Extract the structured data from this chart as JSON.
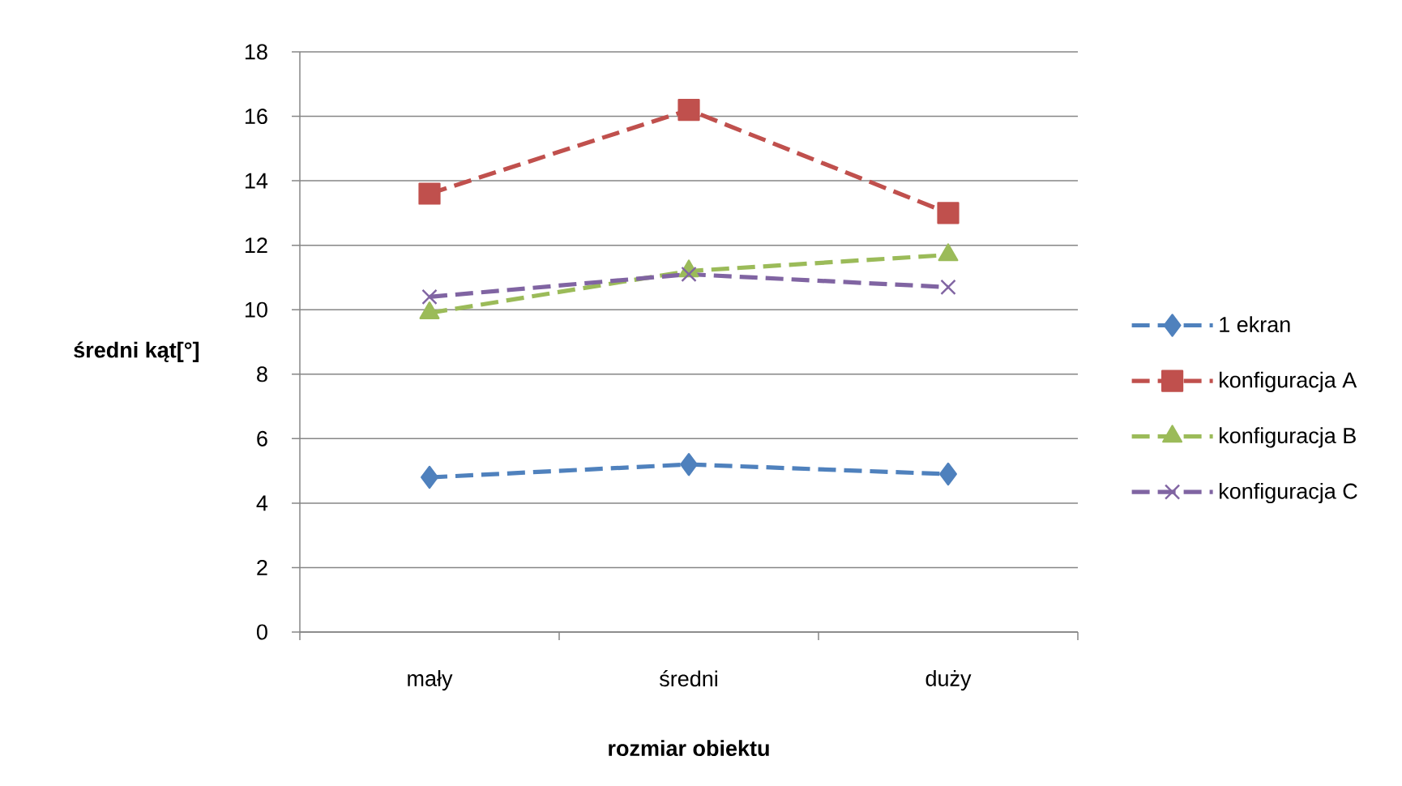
{
  "chart_data": {
    "type": "line",
    "xlabel": "rozmiar obiektu",
    "ylabel": "średni kąt[°]",
    "categories": [
      "mały",
      "średni",
      "duży"
    ],
    "series": [
      {
        "name": "1 ekran",
        "color": "#4f81bd",
        "values": [
          4.8,
          5.2,
          4.9
        ],
        "marker": "diamond",
        "line_style": "dashed"
      },
      {
        "name": "konfiguracja A",
        "color": "#c0504d",
        "values": [
          13.6,
          16.2,
          13.0
        ],
        "marker": "square",
        "line_style": "dashed"
      },
      {
        "name": "konfiguracja B",
        "color": "#9bbb59",
        "values": [
          9.9,
          11.2,
          11.7
        ],
        "marker": "triangle",
        "line_style": "dashed"
      },
      {
        "name": "konfiguracja C",
        "color": "#8064a2",
        "values": [
          10.4,
          11.1,
          10.7
        ],
        "marker": "cross",
        "line_style": "dashed"
      }
    ],
    "ylim": [
      0,
      18
    ],
    "yticks": [
      0,
      2,
      4,
      6,
      8,
      10,
      12,
      14,
      16,
      18
    ],
    "grid": "y",
    "legend": "right"
  }
}
